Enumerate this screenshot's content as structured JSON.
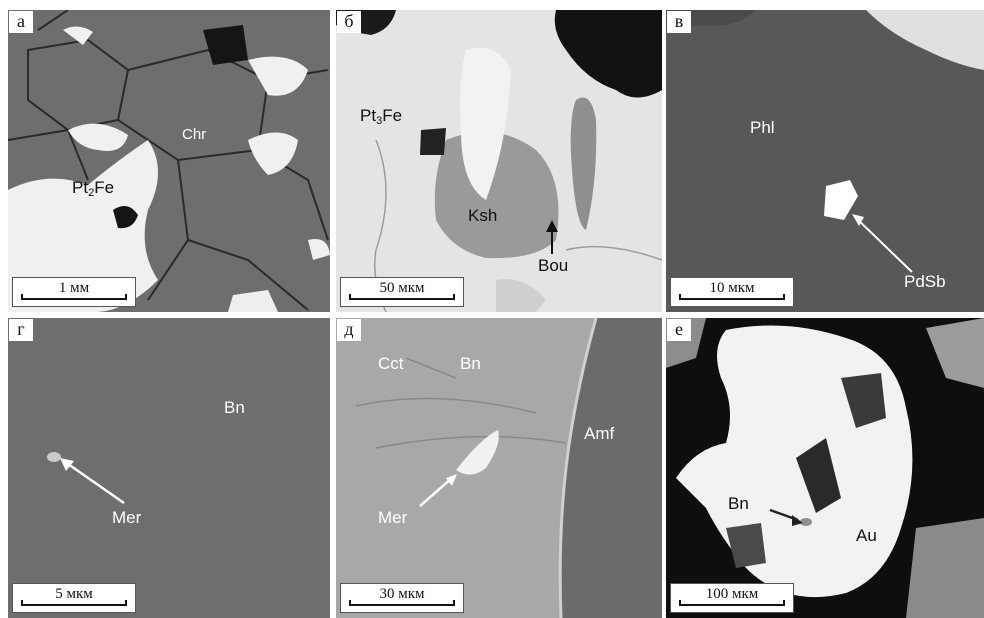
{
  "panels": [
    {
      "letter": "а",
      "labels": [
        "Chr",
        "Pt",
        "2",
        "Fe"
      ],
      "scale": "1 мм"
    },
    {
      "letter": "б",
      "labels": [
        "Pt",
        "3",
        "Fe",
        "Ksh",
        "Bou"
      ],
      "scale": "50 мкм"
    },
    {
      "letter": "в",
      "labels": [
        "Phl",
        "PdSb"
      ],
      "scale": "10 мкм"
    },
    {
      "letter": "г",
      "labels": [
        "Bn",
        "Mer"
      ],
      "scale": "5 мкм"
    },
    {
      "letter": "д",
      "labels": [
        "Cct",
        "Bn",
        "Amf",
        "Mer"
      ],
      "scale": "30 мкм"
    },
    {
      "letter": "е",
      "labels": [
        "Bn",
        "Au"
      ],
      "scale": "100 мкм"
    }
  ],
  "colors": {
    "background": "#ffffff",
    "label_text": "#ffffff",
    "scale_box": "#ffffff"
  }
}
